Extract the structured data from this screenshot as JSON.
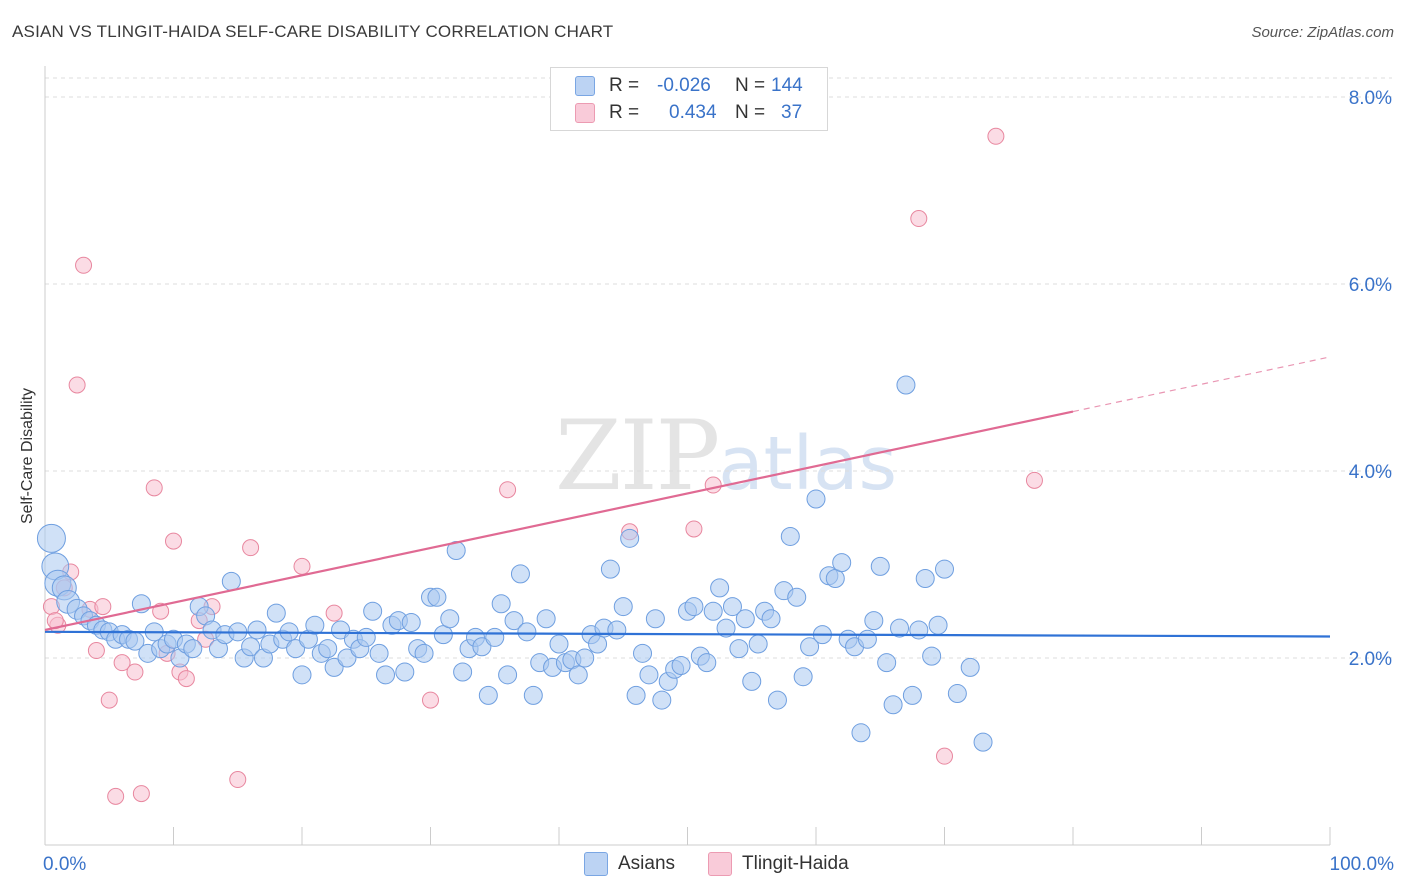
{
  "title": "ASIAN VS TLINGIT-HAIDA SELF-CARE DISABILITY CORRELATION CHART",
  "source": "Source: ZipAtlas.com",
  "watermark": {
    "zip": "ZIP",
    "atlas": "atlas"
  },
  "legend_top": [
    {
      "r_label": "R =",
      "r_value": "-0.026",
      "n_label": "N =",
      "n_value": "144"
    },
    {
      "r_label": "R =",
      "r_value": "0.434",
      "n_label": "N =",
      "n_value": "37"
    }
  ],
  "colors": {
    "asian_fill": "#a9c8f0",
    "asian_stroke": "#6f9fe0",
    "asian_line": "#2f72d6",
    "tlingit_fill": "#f7bfd0",
    "tlingit_stroke": "#e8879f",
    "tlingit_line": "#e06a93",
    "axis_text": "#3a73c9",
    "grid": "#dddddd"
  },
  "chart_data": {
    "type": "scatter",
    "title": "ASIAN VS TLINGIT-HAIDA SELF-CARE DISABILITY CORRELATION CHART",
    "xlabel": "",
    "ylabel": "Self-Care Disability",
    "xlim": [
      0,
      100
    ],
    "ylim": [
      0,
      8.2
    ],
    "x_tick_labels": [
      "0.0%",
      "100.0%"
    ],
    "y_ticks": [
      2.0,
      4.0,
      6.0,
      8.0
    ],
    "y_tick_labels": [
      "2.0%",
      "4.0%",
      "6.0%",
      "8.0%"
    ],
    "grid": true,
    "legend_position": "bottom",
    "series": [
      {
        "name": "Asians",
        "trend": {
          "x0": 0,
          "y0": 2.28,
          "x1": 100,
          "y1": 2.23
        },
        "points": [
          [
            0.5,
            3.28
          ],
          [
            0.8,
            2.98
          ],
          [
            1.0,
            2.8
          ],
          [
            1.5,
            2.75
          ],
          [
            1.8,
            2.6
          ],
          [
            2.5,
            2.52
          ],
          [
            3.0,
            2.45
          ],
          [
            3.5,
            2.4
          ],
          [
            4.0,
            2.35
          ],
          [
            4.5,
            2.3
          ],
          [
            5.0,
            2.28
          ],
          [
            5.5,
            2.2
          ],
          [
            6.0,
            2.25
          ],
          [
            6.5,
            2.2
          ],
          [
            7.0,
            2.18
          ],
          [
            7.5,
            2.58
          ],
          [
            8.0,
            2.05
          ],
          [
            8.5,
            2.28
          ],
          [
            9.0,
            2.1
          ],
          [
            9.5,
            2.15
          ],
          [
            10.0,
            2.2
          ],
          [
            10.5,
            2.0
          ],
          [
            11.0,
            2.15
          ],
          [
            11.5,
            2.1
          ],
          [
            12.0,
            2.55
          ],
          [
            12.5,
            2.45
          ],
          [
            13.0,
            2.3
          ],
          [
            13.5,
            2.1
          ],
          [
            14.0,
            2.25
          ],
          [
            14.5,
            2.82
          ],
          [
            15.0,
            2.28
          ],
          [
            15.5,
            2.0
          ],
          [
            16.0,
            2.12
          ],
          [
            16.5,
            2.3
          ],
          [
            17.0,
            2.0
          ],
          [
            17.5,
            2.15
          ],
          [
            18.0,
            2.48
          ],
          [
            18.5,
            2.2
          ],
          [
            19.0,
            2.28
          ],
          [
            19.5,
            2.1
          ],
          [
            20.0,
            1.82
          ],
          [
            20.5,
            2.2
          ],
          [
            21.0,
            2.35
          ],
          [
            21.5,
            2.05
          ],
          [
            22.0,
            2.1
          ],
          [
            22.5,
            1.9
          ],
          [
            23.0,
            2.3
          ],
          [
            23.5,
            2.0
          ],
          [
            24.0,
            2.2
          ],
          [
            24.5,
            2.1
          ],
          [
            25.0,
            2.22
          ],
          [
            25.5,
            2.5
          ],
          [
            26.0,
            2.05
          ],
          [
            26.5,
            1.82
          ],
          [
            27.0,
            2.35
          ],
          [
            27.5,
            2.4
          ],
          [
            28.0,
            1.85
          ],
          [
            28.5,
            2.38
          ],
          [
            29.0,
            2.1
          ],
          [
            29.5,
            2.05
          ],
          [
            30.0,
            2.65
          ],
          [
            30.5,
            2.65
          ],
          [
            31.0,
            2.25
          ],
          [
            31.5,
            2.42
          ],
          [
            32.0,
            3.15
          ],
          [
            32.5,
            1.85
          ],
          [
            33.0,
            2.1
          ],
          [
            33.5,
            2.22
          ],
          [
            34.0,
            2.12
          ],
          [
            34.5,
            1.6
          ],
          [
            35.0,
            2.22
          ],
          [
            35.5,
            2.58
          ],
          [
            36.0,
            1.82
          ],
          [
            36.5,
            2.4
          ],
          [
            37.0,
            2.9
          ],
          [
            37.5,
            2.28
          ],
          [
            38.0,
            1.6
          ],
          [
            38.5,
            1.95
          ],
          [
            39.0,
            2.42
          ],
          [
            39.5,
            1.9
          ],
          [
            40.0,
            2.15
          ],
          [
            40.5,
            1.95
          ],
          [
            41.0,
            1.98
          ],
          [
            41.5,
            1.82
          ],
          [
            42.0,
            2.0
          ],
          [
            42.5,
            2.25
          ],
          [
            43.0,
            2.15
          ],
          [
            43.5,
            2.32
          ],
          [
            44.0,
            2.95
          ],
          [
            44.5,
            2.3
          ],
          [
            45.0,
            2.55
          ],
          [
            45.5,
            3.28
          ],
          [
            46.0,
            1.6
          ],
          [
            46.5,
            2.05
          ],
          [
            47.0,
            1.82
          ],
          [
            47.5,
            2.42
          ],
          [
            48.0,
            1.55
          ],
          [
            48.5,
            1.75
          ],
          [
            49.0,
            1.88
          ],
          [
            49.5,
            1.92
          ],
          [
            50.0,
            2.5
          ],
          [
            50.5,
            2.55
          ],
          [
            51.0,
            2.02
          ],
          [
            51.5,
            1.95
          ],
          [
            52.0,
            2.5
          ],
          [
            52.5,
            2.75
          ],
          [
            53.0,
            2.32
          ],
          [
            53.5,
            2.55
          ],
          [
            54.0,
            2.1
          ],
          [
            54.5,
            2.42
          ],
          [
            55.0,
            1.75
          ],
          [
            55.5,
            2.15
          ],
          [
            56.0,
            2.5
          ],
          [
            56.5,
            2.42
          ],
          [
            57.0,
            1.55
          ],
          [
            57.5,
            2.72
          ],
          [
            58.0,
            3.3
          ],
          [
            58.5,
            2.65
          ],
          [
            59.0,
            1.8
          ],
          [
            59.5,
            2.12
          ],
          [
            60.0,
            3.7
          ],
          [
            60.5,
            2.25
          ],
          [
            61.0,
            2.88
          ],
          [
            61.5,
            2.85
          ],
          [
            62.0,
            3.02
          ],
          [
            62.5,
            2.2
          ],
          [
            63.0,
            2.12
          ],
          [
            63.5,
            1.2
          ],
          [
            64.0,
            2.2
          ],
          [
            64.5,
            2.4
          ],
          [
            65.0,
            2.98
          ],
          [
            65.5,
            1.95
          ],
          [
            66.0,
            1.5
          ],
          [
            66.5,
            2.32
          ],
          [
            67.0,
            4.92
          ],
          [
            67.5,
            1.6
          ],
          [
            68.0,
            2.3
          ],
          [
            68.5,
            2.85
          ],
          [
            69.0,
            2.02
          ],
          [
            69.5,
            2.35
          ],
          [
            70.0,
            2.95
          ],
          [
            71.0,
            1.62
          ],
          [
            72.0,
            1.9
          ],
          [
            73.0,
            1.1
          ]
        ]
      },
      {
        "name": "Tlingit-Haida",
        "trend": {
          "x0": 0,
          "y0": 2.3,
          "x1": 100,
          "y1": 5.22,
          "solid_until_x": 80
        },
        "points": [
          [
            0.5,
            2.55
          ],
          [
            1.0,
            2.35
          ],
          [
            1.5,
            2.75
          ],
          [
            2.0,
            2.92
          ],
          [
            2.5,
            4.92
          ],
          [
            3.0,
            6.2
          ],
          [
            3.5,
            2.52
          ],
          [
            4.0,
            2.08
          ],
          [
            4.5,
            2.55
          ],
          [
            5.0,
            1.55
          ],
          [
            5.5,
            0.52
          ],
          [
            6.0,
            1.95
          ],
          [
            7.0,
            1.85
          ],
          [
            7.5,
            0.55
          ],
          [
            8.5,
            3.82
          ],
          [
            9.0,
            2.5
          ],
          [
            9.5,
            2.05
          ],
          [
            10.0,
            3.25
          ],
          [
            10.5,
            1.85
          ],
          [
            11.0,
            1.78
          ],
          [
            12.0,
            2.4
          ],
          [
            12.5,
            2.2
          ],
          [
            13.0,
            2.55
          ],
          [
            15.0,
            0.7
          ],
          [
            16.0,
            3.18
          ],
          [
            20.0,
            2.98
          ],
          [
            22.5,
            2.48
          ],
          [
            30.0,
            1.55
          ],
          [
            36.0,
            3.8
          ],
          [
            45.5,
            3.35
          ],
          [
            50.5,
            3.38
          ],
          [
            52.0,
            3.85
          ],
          [
            68.0,
            6.7
          ],
          [
            70.0,
            0.95
          ],
          [
            74.0,
            7.58
          ],
          [
            77.0,
            3.9
          ],
          [
            0.8,
            2.4
          ]
        ]
      }
    ]
  },
  "bottom_legend": [
    {
      "label": "Asians"
    },
    {
      "label": "Tlingit-Haida"
    }
  ]
}
